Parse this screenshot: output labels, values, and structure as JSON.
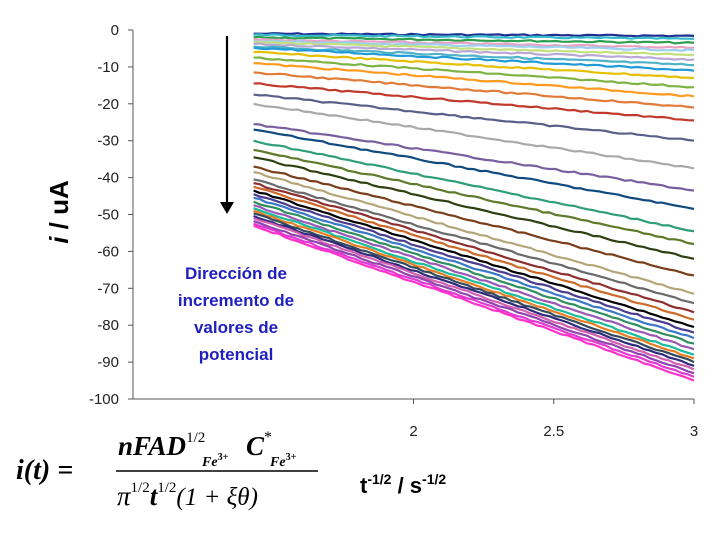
{
  "chart_data": {
    "type": "line",
    "title": "",
    "xlabel": {
      "base": "t",
      "base_exp": "-1/2",
      "sep": " / s",
      "unit_exp": "-1/2"
    },
    "ylabel": {
      "symbol": "i",
      "rest": " / uA"
    },
    "xlim": [
      1,
      3
    ],
    "ylim": [
      -100,
      0
    ],
    "x_ticks": [
      "2",
      "2.5",
      "3"
    ],
    "y_ticks": [
      "0",
      "-10",
      "-20",
      "-30",
      "-40",
      "-50",
      "-60",
      "-70",
      "-80",
      "-90",
      "-100"
    ],
    "grid": false,
    "legend": "none",
    "x_start": 1.43,
    "annotation": {
      "lines": [
        "Dirección de",
        "incremento de",
        "valores de",
        "potencial"
      ],
      "arrow": "down"
    },
    "series": [
      {
        "color": "#1f2f8f",
        "values": [
          [
            1.43,
            -1.0
          ],
          [
            3,
            -1.6
          ]
        ]
      },
      {
        "color": "#33bbcc",
        "values": [
          [
            1.43,
            -1.3
          ],
          [
            3,
            -2.4
          ]
        ]
      },
      {
        "color": "#2e9e4f",
        "values": [
          [
            1.43,
            -2.0
          ],
          [
            3,
            -3.5
          ]
        ]
      },
      {
        "color": "#e8a3c4",
        "values": [
          [
            1.43,
            -2.6
          ],
          [
            3,
            -4.8
          ]
        ]
      },
      {
        "color": "#9ad0f0",
        "values": [
          [
            1.43,
            -3.0
          ],
          [
            3,
            -5.5
          ]
        ]
      },
      {
        "color": "#c3e07a",
        "values": [
          [
            1.43,
            -3.3
          ],
          [
            3,
            -6.8
          ]
        ]
      },
      {
        "color": "#b9a7d6",
        "values": [
          [
            1.43,
            -3.8
          ],
          [
            3,
            -8.0
          ]
        ]
      },
      {
        "color": "#4fb2c7",
        "values": [
          [
            1.43,
            -4.5
          ],
          [
            3,
            -9.5
          ]
        ]
      },
      {
        "color": "#1e9bd7",
        "values": [
          [
            1.43,
            -4.8
          ],
          [
            3,
            -11.0
          ]
        ]
      },
      {
        "color": "#e6c000",
        "values": [
          [
            1.43,
            -6.0
          ],
          [
            3,
            -13.0
          ]
        ]
      },
      {
        "color": "#7cb342",
        "values": [
          [
            1.43,
            -7.5
          ],
          [
            3,
            -15.5
          ]
        ]
      },
      {
        "color": "#ff9a1f",
        "values": [
          [
            1.43,
            -9.0
          ],
          [
            3,
            -18.0
          ]
        ]
      },
      {
        "color": "#e07b39",
        "values": [
          [
            1.43,
            -11.5
          ],
          [
            3,
            -21.0
          ]
        ]
      },
      {
        "color": "#c0392b",
        "values": [
          [
            1.43,
            -14.5
          ],
          [
            3,
            -24.5
          ]
        ]
      },
      {
        "color": "#5a5f8a",
        "values": [
          [
            1.43,
            -17.5
          ],
          [
            3,
            -30.0
          ]
        ]
      },
      {
        "color": "#a9a9a9",
        "values": [
          [
            1.43,
            -20.0
          ],
          [
            3,
            -37.5
          ]
        ]
      },
      {
        "color": "#7a5fa0",
        "values": [
          [
            1.43,
            -25.5
          ],
          [
            3,
            -43.5
          ]
        ]
      },
      {
        "color": "#0e4a7e",
        "values": [
          [
            1.43,
            -27.0
          ],
          [
            3,
            -48.5
          ]
        ]
      },
      {
        "color": "#2e9e7a",
        "values": [
          [
            1.43,
            -30.0
          ],
          [
            3,
            -54.5
          ]
        ]
      },
      {
        "color": "#5e7a2a",
        "values": [
          [
            1.43,
            -32.5
          ],
          [
            3,
            -58.0
          ]
        ]
      },
      {
        "color": "#2f3f12",
        "values": [
          [
            1.43,
            -34.5
          ],
          [
            3,
            -62.0
          ]
        ]
      },
      {
        "color": "#7a3e1a",
        "values": [
          [
            1.43,
            -37.0
          ],
          [
            3,
            -66.5
          ]
        ]
      },
      {
        "color": "#b5a67a",
        "values": [
          [
            1.43,
            -38.5
          ],
          [
            3,
            -71.5
          ]
        ]
      },
      {
        "color": "#6a6a6a",
        "values": [
          [
            1.43,
            -40.5
          ],
          [
            3,
            -74.0
          ]
        ]
      },
      {
        "color": "#8e2f2f",
        "values": [
          [
            1.43,
            -41.5
          ],
          [
            3,
            -76.5
          ]
        ]
      },
      {
        "color": "#cc6a2a",
        "values": [
          [
            1.43,
            -42.5
          ],
          [
            3,
            -78.5
          ]
        ]
      },
      {
        "color": "#000000",
        "values": [
          [
            1.43,
            -43.5
          ],
          [
            3,
            -80.5
          ]
        ]
      },
      {
        "color": "#4b3c8f",
        "values": [
          [
            1.43,
            -44.5
          ],
          [
            3,
            -82.0
          ]
        ]
      },
      {
        "color": "#3a78c8",
        "values": [
          [
            1.43,
            -45.5
          ],
          [
            3,
            -83.5
          ]
        ]
      },
      {
        "color": "#2f8f5f",
        "values": [
          [
            1.43,
            -46.5
          ],
          [
            3,
            -85.0
          ]
        ]
      },
      {
        "color": "#9b59b6",
        "values": [
          [
            1.43,
            -47.5
          ],
          [
            3,
            -86.5
          ]
        ]
      },
      {
        "color": "#1abc9c",
        "values": [
          [
            1.43,
            -48.3
          ],
          [
            3,
            -88.0
          ]
        ]
      },
      {
        "color": "#e67e22",
        "values": [
          [
            1.43,
            -49.0
          ],
          [
            3,
            -89.0
          ]
        ]
      },
      {
        "color": "#34495e",
        "values": [
          [
            1.43,
            -49.7
          ],
          [
            3,
            -90.0
          ]
        ]
      },
      {
        "color": "#2e2a7a",
        "values": [
          [
            1.43,
            -50.4
          ],
          [
            3,
            -91.0
          ]
        ]
      },
      {
        "color": "#d35fb0",
        "values": [
          [
            1.43,
            -51.0
          ],
          [
            3,
            -92.0
          ]
        ]
      },
      {
        "color": "#8e44ad",
        "values": [
          [
            1.43,
            -51.8
          ],
          [
            3,
            -93.0
          ]
        ]
      },
      {
        "color": "#e03ad2",
        "values": [
          [
            1.43,
            -52.5
          ],
          [
            3,
            -94.0
          ]
        ]
      },
      {
        "color": "#ff33cc",
        "values": [
          [
            1.43,
            -53.0
          ],
          [
            3,
            -95.0
          ]
        ]
      }
    ]
  },
  "equation": {
    "lhs": "i(t) =",
    "numerator": "nFAD",
    "num_exp": "1/2",
    "num_sub1": "Fe",
    "num_sub1_sup": "3+",
    "conc": "C",
    "conc_sup": "*",
    "conc_sub": "Fe",
    "conc_sub_sup": "3+",
    "denominator": "π",
    "den_exp1": "1/2",
    "den_t": "t",
    "den_exp2": "1/2",
    "den_tail": "(1 + ξθ)"
  }
}
